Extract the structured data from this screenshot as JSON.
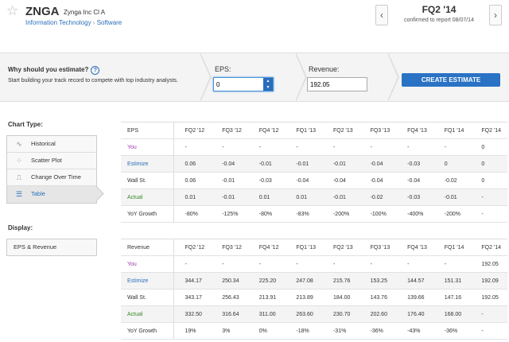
{
  "header": {
    "ticker": "ZNGA",
    "company": "Zynga Inc Cl A",
    "breadcrumb": [
      "Information Technology",
      "Software"
    ],
    "quarter": "FQ2 '14",
    "confirmed": "confirmed to report 08/07/14",
    "prev_glyph": "‹",
    "next_glyph": "›"
  },
  "estimate_bar": {
    "why_title": "Why should you estimate?",
    "help": "?",
    "why_text": "Start building your track record to compete with top industry analysts.",
    "eps_label": "EPS:",
    "eps_value": "0",
    "revenue_label": "Revenue:",
    "revenue_value": "192.05",
    "create_button": "CREATE ESTIMATE"
  },
  "chart_type": {
    "label": "Chart Type:",
    "items": [
      {
        "label": "Historical",
        "icon": "line-icon",
        "glyph": "∿"
      },
      {
        "label": "Scatter Plot",
        "icon": "scatter-icon",
        "glyph": "⁘"
      },
      {
        "label": "Change Over Time",
        "icon": "step-icon",
        "glyph": "⎍"
      },
      {
        "label": "Table",
        "icon": "table-icon",
        "glyph": "☰",
        "active": true
      }
    ]
  },
  "display": {
    "label": "Display:",
    "value": "EPS & Revenue"
  },
  "eps_table": {
    "title": "EPS",
    "columns": [
      "FQ2 '12",
      "FQ3 '12",
      "FQ4 '12",
      "FQ1 '13",
      "FQ2 '13",
      "FQ3 '13",
      "FQ4 '13",
      "FQ1 '14",
      "FQ2 '14"
    ],
    "rows": [
      {
        "label": "You",
        "cls": "lab-you",
        "values": [
          "-",
          "-",
          "-",
          "-",
          "-",
          "-",
          "-",
          "-",
          "0"
        ]
      },
      {
        "label": "Estimize",
        "cls": "lab-est",
        "values": [
          "0.06",
          "-0.04",
          "-0.01",
          "-0.01",
          "-0.01",
          "-0.04",
          "-0.03",
          "0",
          "0"
        ]
      },
      {
        "label": "Wall St.",
        "cls": "lab-wall",
        "values": [
          "0.06",
          "-0.01",
          "-0.03",
          "-0.04",
          "-0.04",
          "-0.04",
          "-0.04",
          "-0.02",
          "0"
        ]
      },
      {
        "label": "Actual",
        "cls": "lab-act",
        "values": [
          "0.01",
          "-0.01",
          "0.01",
          "0.01",
          "-0.01",
          "-0.02",
          "-0.03",
          "-0.01",
          "-"
        ]
      },
      {
        "label": "YoY Growth",
        "cls": "lab-yoy",
        "values": [
          "-80%",
          "-125%",
          "-80%",
          "-83%",
          "-200%",
          "-100%",
          "-400%",
          "-200%",
          "-"
        ]
      }
    ]
  },
  "revenue_table": {
    "title": "Revenue",
    "columns": [
      "FQ2 '12",
      "FQ3 '12",
      "FQ4 '12",
      "FQ1 '13",
      "FQ2 '13",
      "FQ3 '13",
      "FQ4 '13",
      "FQ1 '14",
      "FQ2 '14"
    ],
    "rows": [
      {
        "label": "You",
        "cls": "lab-you",
        "values": [
          "-",
          "-",
          "-",
          "-",
          "-",
          "-",
          "-",
          "-",
          "192.05"
        ]
      },
      {
        "label": "Estimize",
        "cls": "lab-est",
        "values": [
          "344.17",
          "250.34",
          "225.20",
          "247.08",
          "215.76",
          "153.25",
          "144.57",
          "151.31",
          "192.09"
        ]
      },
      {
        "label": "Wall St.",
        "cls": "lab-wall",
        "values": [
          "343.17",
          "256.43",
          "213.91",
          "213.89",
          "184.00",
          "143.76",
          "139.66",
          "147.16",
          "192.05"
        ]
      },
      {
        "label": "Actual",
        "cls": "lab-act",
        "values": [
          "332.50",
          "316.64",
          "311.00",
          "263.60",
          "230.70",
          "202.60",
          "176.40",
          "168.00",
          "-"
        ]
      },
      {
        "label": "YoY Growth",
        "cls": "lab-yoy",
        "values": [
          "19%",
          "3%",
          "0%",
          "-18%",
          "-31%",
          "-36%",
          "-43%",
          "-36%",
          "-"
        ]
      }
    ]
  }
}
